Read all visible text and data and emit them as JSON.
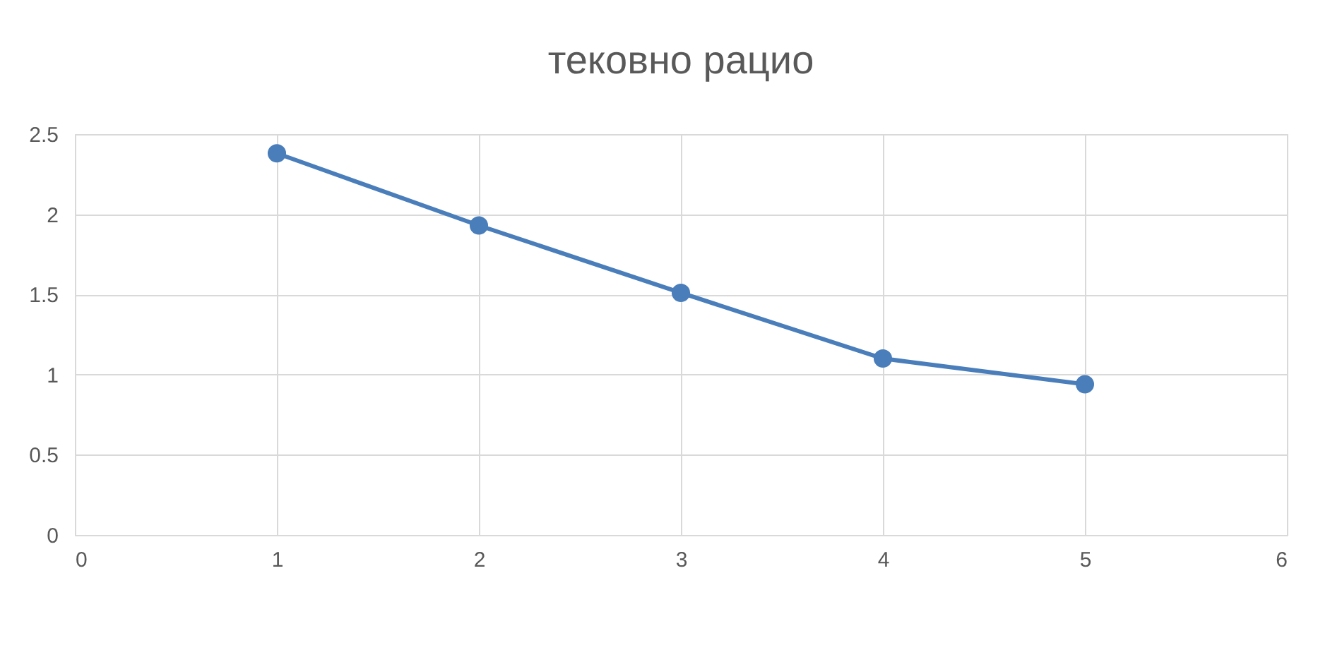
{
  "chart_data": {
    "type": "line",
    "title": "тековно рацио",
    "x": [
      1,
      2,
      3,
      4,
      5
    ],
    "series": [
      {
        "color": "#4a7ebb",
        "values": [
          2.38,
          1.93,
          1.51,
          1.1,
          0.94
        ]
      }
    ],
    "xlim": [
      0,
      6
    ],
    "xticks": [
      0,
      1,
      2,
      3,
      4,
      5,
      6
    ],
    "ylim": [
      0,
      2.5
    ],
    "yticks": [
      0,
      0.5,
      1,
      1.5,
      2,
      2.5
    ],
    "grid": true,
    "marker": "circle",
    "line_style": "solid"
  }
}
